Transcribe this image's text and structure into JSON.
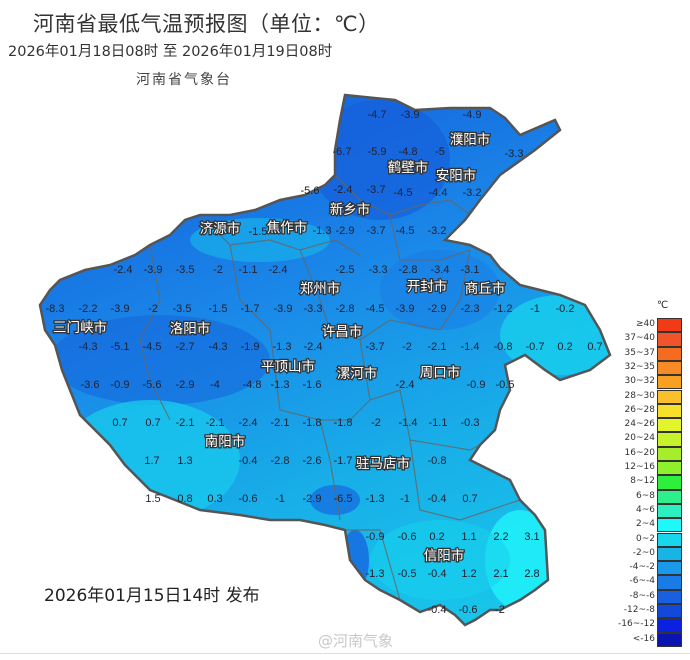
{
  "header": {
    "title": "河南省最低气温预报图（单位：℃）",
    "period": "2026年01月18日08时  至  2026年01月19日08时",
    "agency": "河南省气象台"
  },
  "footer": {
    "publish": "2026年01月15日14时 发布",
    "watermark": "@河南气象"
  },
  "map": {
    "cities": [
      "濮阳市",
      "鹤壁市",
      "安阳市",
      "新乡市",
      "济源市",
      "焦作市",
      "郑州市",
      "开封市",
      "商丘市",
      "三门峡市",
      "洛阳市",
      "许昌市",
      "平顶山市",
      "漯河市",
      "周口市",
      "南阳市",
      "驻马店市",
      "信阳市"
    ],
    "station_values": [
      "-4.7",
      "-3.9",
      "-4.9",
      "-6.7",
      "-5.9",
      "-4.8",
      "-5",
      "-3.3",
      "-5.6",
      "-2.4",
      "-3.7",
      "-4.5",
      "-4.4",
      "-3.2",
      "-1.3",
      "-2.9",
      "-3.7",
      "-4.5",
      "-3.2",
      "-1.5",
      "-3.5",
      "-2",
      "-1.1",
      "-2.4",
      "-2.5",
      "-2.4",
      "-3.9",
      "-8.3",
      "-2.2",
      "-3.9",
      "-2",
      "-3.5",
      "-1.5",
      "-1.7",
      "-3.9",
      "-3.3",
      "-4.3",
      "-5.1",
      "-4.5",
      "-2.7",
      "-4.3",
      "-1.9",
      "-1.3",
      "-2.4",
      "-3.6",
      "-0.9",
      "-5.6",
      "-2.9",
      "-4",
      "-4.8",
      "-1.3",
      "-1.6",
      "-3.3",
      "-2.8",
      "-3.4",
      "-3.1",
      "-2.8",
      "-4.5",
      "-3.9",
      "-2.9",
      "-2.3",
      "-1.2",
      "-1",
      "-0.2",
      "-3.7",
      "-2",
      "-2.1",
      "-1.4",
      "-0.8",
      "-0.7",
      "0.2",
      "0.7",
      "-2.4",
      "-0.9",
      "-0.5",
      "0.7",
      "0.7",
      "-2.1",
      "-2.1",
      "-2.4",
      "-2.1",
      "-1.8",
      "-1.8",
      "1.7",
      "1.3",
      "-0.4",
      "-2.8",
      "-2.6",
      "-1.7",
      "1.5",
      "0.8",
      "0.3",
      "-0.6",
      "-1",
      "-2.9",
      "-6.5",
      "-2",
      "-1.4",
      "-1.1",
      "-0.3",
      "-0.8",
      "-1.3",
      "-1",
      "-0.4",
      "0.7",
      "-0.9",
      "-0.6",
      "0.2",
      "1.1",
      "2.2",
      "3.1",
      "-1.3",
      "-0.5",
      "-0.4",
      "1.2",
      "2.1",
      "2.8",
      "-0.4",
      "-0.6",
      "-2"
    ],
    "fill_colors": {
      "dark": "#1560dc",
      "mid": "#1a8ae6",
      "light": "#16b8ea",
      "cyan": "#20e8f4",
      "border": "#555555"
    }
  },
  "legend": {
    "unit": "℃",
    "items": [
      {
        "label": "≥40",
        "color": "#f23a16"
      },
      {
        "label": "37~40",
        "color": "#f0542a"
      },
      {
        "label": "35~37",
        "color": "#f56c1f"
      },
      {
        "label": "32~35",
        "color": "#f88a25"
      },
      {
        "label": "30~32",
        "color": "#f9a022"
      },
      {
        "label": "28~30",
        "color": "#f9c02c"
      },
      {
        "label": "26~28",
        "color": "#f7e02a"
      },
      {
        "label": "24~26",
        "color": "#e2f52a"
      },
      {
        "label": "20~24",
        "color": "#c8f22c"
      },
      {
        "label": "16~20",
        "color": "#a6ee2c"
      },
      {
        "label": "12~16",
        "color": "#8ef02c"
      },
      {
        "label": "8~12",
        "color": "#2ef03c"
      },
      {
        "label": "6~8",
        "color": "#2ef08a"
      },
      {
        "label": "4~6",
        "color": "#2cf0c0"
      },
      {
        "label": "2~4",
        "color": "#1ef8f8"
      },
      {
        "label": "0~2",
        "color": "#18d6ec"
      },
      {
        "label": "-2~0",
        "color": "#18b4e6"
      },
      {
        "label": "-4~-2",
        "color": "#1a98ea"
      },
      {
        "label": "-6~-4",
        "color": "#1a7ae6"
      },
      {
        "label": "-8~-6",
        "color": "#1860e0"
      },
      {
        "label": "-12~-8",
        "color": "#1448d8"
      },
      {
        "label": "-16~-12",
        "color": "#0a22e0"
      },
      {
        "label": "<-16",
        "color": "#0a14b0"
      }
    ]
  }
}
